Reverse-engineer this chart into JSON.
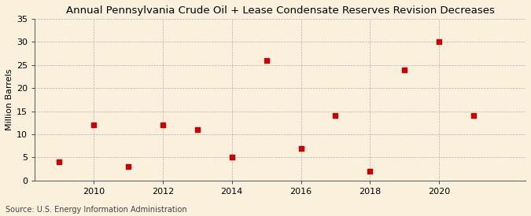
{
  "title": "Annual Pennsylvania Crude Oil + Lease Condensate Reserves Revision Decreases",
  "ylabel": "Million Barrels",
  "source": "Source: U.S. Energy Information Administration",
  "years": [
    2009,
    2010,
    2011,
    2012,
    2013,
    2014,
    2015,
    2016,
    2017,
    2018,
    2019,
    2020,
    2021
  ],
  "values": [
    4.0,
    12.0,
    3.0,
    12.0,
    11.0,
    5.0,
    26.0,
    7.0,
    14.0,
    2.0,
    24.0,
    30.0,
    14.0
  ],
  "marker_color": "#cc0000",
  "marker": "s",
  "marker_size": 4,
  "background_color": "#faf0dc",
  "plot_bg_color": "#faf0dc",
  "grid_color": "#999999",
  "ylim": [
    0,
    35
  ],
  "yticks": [
    0,
    5,
    10,
    15,
    20,
    25,
    30,
    35
  ],
  "xlim": [
    2008.3,
    2022.5
  ],
  "xticks": [
    2010,
    2012,
    2014,
    2016,
    2018,
    2020
  ],
  "title_fontsize": 9.5,
  "axis_fontsize": 8,
  "source_fontsize": 7.0
}
